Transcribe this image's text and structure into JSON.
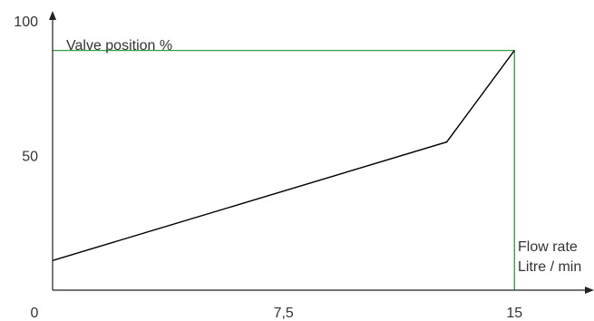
{
  "chart_data": {
    "type": "line",
    "title": "",
    "xlabel_lines": [
      "Flow rate",
      "Litre / min"
    ],
    "ylabel": "Valve position %",
    "xlim": [
      0,
      17.2
    ],
    "ylim": [
      0,
      103
    ],
    "x_ticks": [
      {
        "value": 0,
        "label": "0"
      },
      {
        "value": 7.5,
        "label": "7,5"
      },
      {
        "value": 15,
        "label": "15"
      }
    ],
    "y_ticks": [
      {
        "value": 50,
        "label": "50"
      },
      {
        "value": 100,
        "label": "100"
      }
    ],
    "grid": false,
    "legend": false,
    "series": [
      {
        "color": "#000000",
        "points": [
          {
            "x": 0,
            "y": 11
          },
          {
            "x": 12.8,
            "y": 55
          },
          {
            "x": 15,
            "y": 89
          }
        ]
      }
    ],
    "limit_lines": {
      "color": "#2e9e3e",
      "max_y": 89,
      "max_x": 15
    }
  }
}
